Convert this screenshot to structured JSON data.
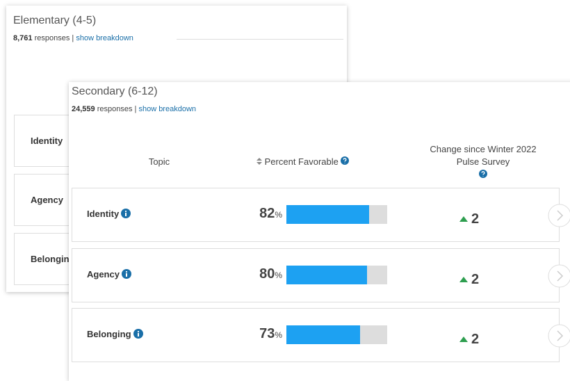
{
  "back_card": {
    "title": "Elementary (4-5)",
    "responses_count": "8,761",
    "responses_text": "responses |",
    "link": "show breakdown",
    "rows": [
      "Identity",
      "Agency",
      "Belonging"
    ]
  },
  "front_card": {
    "title": "Secondary (6-12)",
    "responses_count": "24,559",
    "responses_text": "responses |",
    "link": "show breakdown",
    "table": {
      "headers": {
        "topic": "Topic",
        "percent": "Percent Favorable",
        "change": [
          "Change since Winter 2022",
          "Pulse Survey"
        ]
      },
      "percent_unit": "%",
      "scale": [
        0,
        100
      ],
      "rows": [
        {
          "topic": "Identity",
          "percent": 82,
          "change": 2
        },
        {
          "topic": "Agency",
          "percent": 80,
          "change": 2
        },
        {
          "topic": "Belonging",
          "percent": 73,
          "change": 2
        }
      ]
    }
  }
}
